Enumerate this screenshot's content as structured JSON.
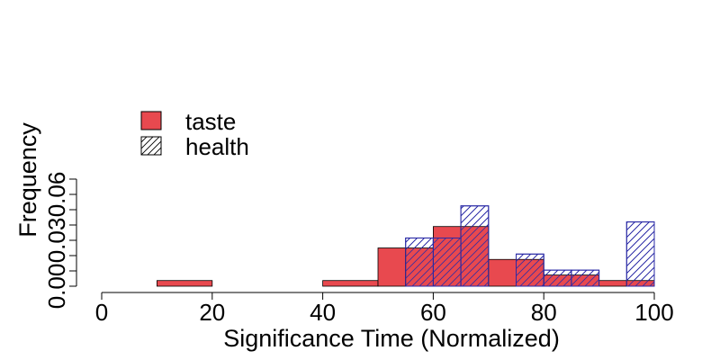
{
  "chart_data": {
    "type": "histogram",
    "title": "",
    "xlabel": "Significance Time (Normalized)",
    "ylabel": "Frequency",
    "xlim": [
      0,
      100
    ],
    "ylim": [
      0,
      0.07
    ],
    "x_ticks": [
      "0",
      "20",
      "40",
      "60",
      "80",
      "100"
    ],
    "y_ticks": [
      "0.00",
      "0.03",
      "0.06"
    ],
    "legend_position": "top-left",
    "series": [
      {
        "name": "taste",
        "style": "solid",
        "fill_color": "#e8494f",
        "bins": [
          {
            "x0": 10,
            "x1": 20,
            "y": 0.0037
          },
          {
            "x0": 40,
            "x1": 50,
            "y": 0.0037
          },
          {
            "x0": 50,
            "x1": 55,
            "y": 0.025
          },
          {
            "x0": 55,
            "x1": 60,
            "y": 0.025
          },
          {
            "x0": 60,
            "x1": 65,
            "y": 0.039
          },
          {
            "x0": 65,
            "x1": 70,
            "y": 0.039
          },
          {
            "x0": 70,
            "x1": 75,
            "y": 0.0175
          },
          {
            "x0": 75,
            "x1": 80,
            "y": 0.0175
          },
          {
            "x0": 80,
            "x1": 85,
            "y": 0.0073
          },
          {
            "x0": 85,
            "x1": 90,
            "y": 0.0073
          },
          {
            "x0": 90,
            "x1": 95,
            "y": 0.0037
          },
          {
            "x0": 95,
            "x1": 100,
            "y": 0.0037
          }
        ]
      },
      {
        "name": "health",
        "style": "hatched",
        "line_color": "#2a2aa6",
        "bins": [
          {
            "x0": 55,
            "x1": 60,
            "y": 0.0315
          },
          {
            "x0": 60,
            "x1": 65,
            "y": 0.0315
          },
          {
            "x0": 65,
            "x1": 70,
            "y": 0.0525
          },
          {
            "x0": 75,
            "x1": 80,
            "y": 0.021
          },
          {
            "x0": 80,
            "x1": 85,
            "y": 0.0105
          },
          {
            "x0": 85,
            "x1": 90,
            "y": 0.0105
          },
          {
            "x0": 95,
            "x1": 100,
            "y": 0.042
          }
        ]
      }
    ]
  }
}
